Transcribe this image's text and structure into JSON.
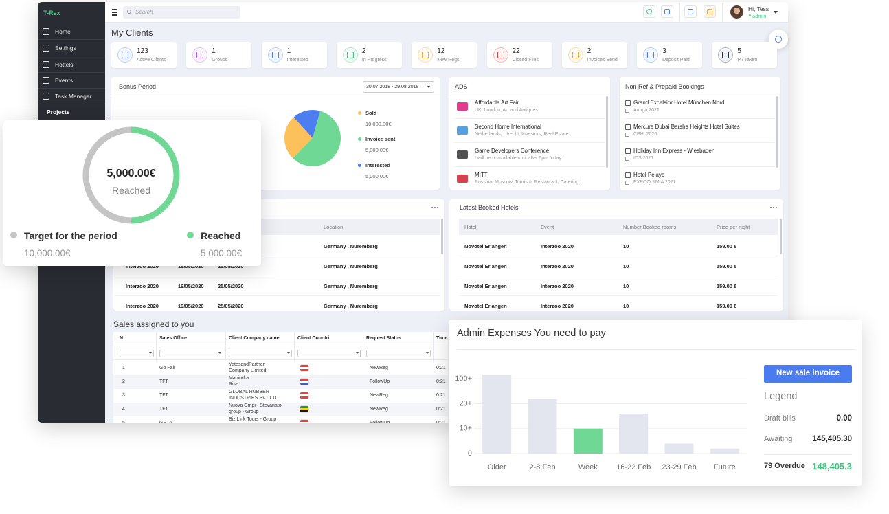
{
  "app": {
    "name": "T-Rex"
  },
  "sidebar": [
    "Home",
    "Settings",
    "Hottels",
    "Events",
    "Task Manager",
    "Projects"
  ],
  "topbar": {
    "search": "Search",
    "greeting": "Hi, Tess",
    "role": "admin"
  },
  "page_title": "My Clients",
  "stats": [
    {
      "value": 123,
      "label": "Active Clients",
      "color": "#4d7ef0"
    },
    {
      "value": 1,
      "label": "Groups",
      "color": "#b05fe0"
    },
    {
      "value": 1,
      "label": "Interested",
      "color": "#4d7ef0"
    },
    {
      "value": 2,
      "label": "In Progress",
      "color": "#3cc47c"
    },
    {
      "value": 12,
      "label": "New Regs",
      "color": "#f5a623"
    },
    {
      "value": 22,
      "label": "Closed Files",
      "color": "#e8403d"
    },
    {
      "value": 2,
      "label": "Invoices Send",
      "color": "#f5a623"
    },
    {
      "value": 3,
      "label": "Deposit Paid",
      "color": "#4d7ef0"
    },
    {
      "value": 5,
      "label": "P / Taken",
      "color": "#2f3a55"
    }
  ],
  "bonus": {
    "title": "Bonus Period",
    "period": "30.07.2018 - 29.08.2018",
    "items": [
      {
        "name": "Sold",
        "amount": "10,000.00€",
        "share": 26,
        "color": "#fcc15a"
      },
      {
        "name": "Invoice sent",
        "amount": "5,000.00€",
        "share": 58,
        "color": "#6fd895"
      },
      {
        "name": "Interested",
        "amount": "5,000.00€",
        "share": 16,
        "color": "#4d7ef0"
      }
    ]
  },
  "ads": {
    "title": "ADS",
    "items": [
      {
        "title": "Affordable Art Fair",
        "text": "UK, London, Art and Antiques",
        "color": "#e2187a"
      },
      {
        "title": "Second Home International",
        "text": "Netherlands, Utrecht, Investors, Real Estate",
        "color": "#3a8fd8"
      },
      {
        "title": "Game Developers Conference",
        "text": "I will be unavailable until after 5pm today.",
        "color": "#333333"
      },
      {
        "title": "MITT",
        "text": "Russina, Moscow, Tourism, Restaurant, Catering...",
        "color": "#d0202e"
      }
    ]
  },
  "bookings": {
    "title": "Non Ref & Prepaid Bookings",
    "items": [
      {
        "title": "Grand Excelsior Hotel München Nord",
        "text": "Anuga 2021"
      },
      {
        "title": "Mercure Dubai Barsha Heights Hotel Suites",
        "text": "CPHI 2020"
      },
      {
        "title": "Holiday Inn Express - Wiesbaden",
        "text": "IDS 2021"
      },
      {
        "title": "Hotel Pelayo",
        "text": "EXPOQUIMIA 2021"
      }
    ]
  },
  "events": {
    "columns": [
      "Location"
    ],
    "rows": [
      {
        "location": "Germany , Nuremberg"
      },
      {
        "event": "Interzoo 2020",
        "start": "19/05/2020",
        "end": "25/05/2020",
        "location": "Germany , Nuremberg"
      },
      {
        "event": "Interzoo 2020",
        "start": "19/05/2020",
        "end": "25/05/2020",
        "location": "Germany , Nuremberg"
      },
      {
        "event": "Interzoo 2020",
        "start": "19/05/2020",
        "end": "25/05/2020",
        "location": "Germany , Nuremberg"
      }
    ]
  },
  "hotels": {
    "title": "Latest Booked Hotels",
    "columns": [
      "Hotel",
      "Event",
      "Number Booked rooms",
      "Price per night"
    ],
    "rows": [
      [
        "Novotel Erlangen",
        "Interzoo 2020",
        10,
        "159.00 €"
      ],
      [
        "Novotel Erlangen",
        "Interzoo 2020",
        10,
        "159.00 €"
      ],
      [
        "Novotel Erlangen",
        "Interzoo 2020",
        10,
        "159.00 €"
      ],
      [
        "Novotel Erlangen",
        "Interzoo 2020",
        10,
        "159.00 €"
      ]
    ]
  },
  "sales": {
    "title": "Sales assigned to you",
    "columns": [
      "N",
      "Sales Office",
      "Client Company name",
      "Client Countri",
      "Request Status",
      "Time"
    ],
    "rows": [
      {
        "n": 1,
        "office": "Go Fair",
        "company": [
          "YatesandPartner",
          "Company Limited"
        ],
        "flag": [
          "#e8403d",
          "#ffffff",
          "#e8403d"
        ],
        "status": "NewReg",
        "time": "0:21"
      },
      {
        "n": 2,
        "office": "TFT",
        "company": [
          "Mahindra",
          "Rise"
        ],
        "flag": [
          "#e8403d",
          "#ffffff",
          "#3b5fc0"
        ],
        "status": "FollowUp",
        "time": "0:21"
      },
      {
        "n": 3,
        "office": "TFT",
        "company": [
          "GLOBAL RUBBER",
          "INDUSTRIES PVT LTD"
        ],
        "flag": [
          "#e8403d",
          "#ffffff",
          "#e8403d"
        ],
        "status": "NewReg",
        "time": "0:21"
      },
      {
        "n": 4,
        "office": "TFT",
        "company": [
          "Nuova Ompi - Stevanato",
          "group - Group"
        ],
        "flag": [
          "#1a9c3e",
          "#f7d117",
          "#111111"
        ],
        "status": "NewReg",
        "time": "0:21"
      },
      {
        "n": 5,
        "office": "GETA",
        "company": [
          "Biz Link Tours - Group"
        ],
        "flag": [
          "#e8403d",
          "#ffffff",
          "#e8403d"
        ],
        "status": "FollowUp",
        "time": "0:21"
      }
    ]
  },
  "target": {
    "value": {
      "value": 5000,
      "label": "5,000.00€"
    },
    "caption": "Reached",
    "target_label": "Target for the period",
    "target": {
      "value": 10000,
      "label": "10,000.00€"
    },
    "reached_label": "Reached",
    "reached": {
      "value": 5000,
      "label": "5,000.00€"
    },
    "target_color": "#c5c5c5",
    "reached_color": "#6fd895"
  },
  "expenses": {
    "title": "Admin Expenses You need to pay",
    "button": "New sale invoice",
    "legend_title": "Legend",
    "legend": [
      {
        "name": "Draft bills",
        "value": "0.00"
      },
      {
        "name": "Awaiting",
        "value": "145,405.30"
      },
      {
        "name": "79 Overdue",
        "value": "148,405.3"
      }
    ],
    "chart_data": {
      "type": "bar",
      "scale": "piecewise",
      "categories": [
        "Older",
        "2-8 Feb",
        "Week",
        "16-22 Feb",
        "23-29 Feb",
        "Future"
      ],
      "values": [
        113,
        35,
        10,
        16,
        4,
        2
      ],
      "colors": [
        "#e3e6ee",
        "#e3e6ee",
        "#6fd895",
        "#e3e6ee",
        "#e3e6ee",
        "#e3e6ee"
      ],
      "ylim": [
        0,
        140
      ],
      "yticks": [
        0,
        {
          "value": 10,
          "label": "10+"
        },
        {
          "value": 20,
          "label": "20+"
        },
        {
          "value": 100,
          "label": "100+"
        }
      ],
      "grid": true
    }
  }
}
